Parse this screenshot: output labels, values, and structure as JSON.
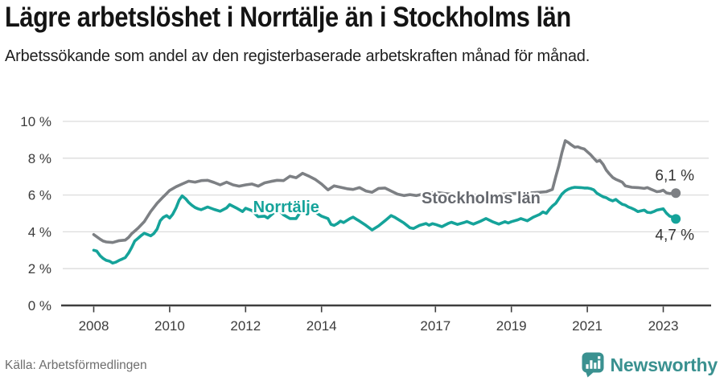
{
  "header": {
    "title": "Lägre arbetslöshet i Norrtälje än i Stockholms län",
    "subtitle": "Arbetssökande som andel av den registerbaserade arbetskraften månad för månad."
  },
  "footer": {
    "source": "Källa: Arbetsförmedlingen",
    "brand": "Newsworthy",
    "brand_icon": "newsworthy-speech-bubble-with-bar-chart",
    "brand_color": "#3a9190"
  },
  "chart_data": {
    "type": "line",
    "title": "Lägre arbetslöshet i Norrtälje än i Stockholms län",
    "xlabel": "",
    "ylabel": "",
    "unit": "%",
    "ylim": [
      0,
      10
    ],
    "grid": true,
    "gridline_color": "#dcdcdc",
    "axis_color": "#3e3e3e",
    "y_ticks": [
      {
        "label": "0 %",
        "value": 0
      },
      {
        "label": "2 %",
        "value": 2
      },
      {
        "label": "4 %",
        "value": 4
      },
      {
        "label": "6 %",
        "value": 6
      },
      {
        "label": "8 %",
        "value": 8
      },
      {
        "label": "10 %",
        "value": 10
      }
    ],
    "x_ticks": [
      2008,
      2010,
      2012,
      2014,
      2017,
      2019,
      2021,
      2023
    ],
    "series": [
      {
        "name": "Stockholms län",
        "color": "#7d8084",
        "label_color": "#66696f",
        "label_anchor": {
          "x": 2018.2,
          "y": 5.85
        },
        "end_label": "6,1 %",
        "end_value": 6.1,
        "label_side": "above",
        "points": [
          [
            2008.0,
            3.85
          ],
          [
            2008.17,
            3.6
          ],
          [
            2008.25,
            3.5
          ],
          [
            2008.33,
            3.45
          ],
          [
            2008.5,
            3.42
          ],
          [
            2008.67,
            3.52
          ],
          [
            2008.83,
            3.55
          ],
          [
            2008.92,
            3.7
          ],
          [
            2009.0,
            3.9
          ],
          [
            2009.17,
            4.2
          ],
          [
            2009.33,
            4.55
          ],
          [
            2009.5,
            5.1
          ],
          [
            2009.67,
            5.55
          ],
          [
            2009.83,
            5.9
          ],
          [
            2009.92,
            6.08
          ],
          [
            2010.0,
            6.25
          ],
          [
            2010.17,
            6.45
          ],
          [
            2010.33,
            6.6
          ],
          [
            2010.5,
            6.75
          ],
          [
            2010.67,
            6.7
          ],
          [
            2010.83,
            6.78
          ],
          [
            2011.0,
            6.8
          ],
          [
            2011.17,
            6.68
          ],
          [
            2011.33,
            6.55
          ],
          [
            2011.5,
            6.7
          ],
          [
            2011.67,
            6.55
          ],
          [
            2011.83,
            6.48
          ],
          [
            2012.0,
            6.55
          ],
          [
            2012.17,
            6.6
          ],
          [
            2012.33,
            6.48
          ],
          [
            2012.5,
            6.66
          ],
          [
            2012.67,
            6.74
          ],
          [
            2012.83,
            6.8
          ],
          [
            2013.0,
            6.78
          ],
          [
            2013.17,
            7.02
          ],
          [
            2013.33,
            6.94
          ],
          [
            2013.5,
            7.18
          ],
          [
            2013.67,
            7.02
          ],
          [
            2013.83,
            6.85
          ],
          [
            2014.0,
            6.6
          ],
          [
            2014.17,
            6.28
          ],
          [
            2014.33,
            6.5
          ],
          [
            2014.5,
            6.42
          ],
          [
            2014.67,
            6.34
          ],
          [
            2014.83,
            6.3
          ],
          [
            2015.0,
            6.4
          ],
          [
            2015.17,
            6.22
          ],
          [
            2015.33,
            6.15
          ],
          [
            2015.5,
            6.36
          ],
          [
            2015.67,
            6.38
          ],
          [
            2015.83,
            6.22
          ],
          [
            2016.0,
            6.05
          ],
          [
            2016.17,
            5.97
          ],
          [
            2016.33,
            6.02
          ],
          [
            2016.5,
            5.97
          ],
          [
            2016.67,
            6.05
          ],
          [
            2016.83,
            6.1
          ],
          [
            2017.0,
            6.15
          ],
          [
            2017.25,
            6.08
          ],
          [
            2017.5,
            6.03
          ],
          [
            2017.75,
            6.0
          ],
          [
            2018.0,
            6.0
          ],
          [
            2018.25,
            5.96
          ],
          [
            2018.5,
            6.0
          ],
          [
            2018.75,
            6.05
          ],
          [
            2019.0,
            6.08
          ],
          [
            2019.25,
            6.1
          ],
          [
            2019.5,
            6.12
          ],
          [
            2019.75,
            6.15
          ],
          [
            2019.92,
            6.18
          ],
          [
            2020.08,
            6.3
          ],
          [
            2020.17,
            7.0
          ],
          [
            2020.25,
            7.6
          ],
          [
            2020.33,
            8.3
          ],
          [
            2020.42,
            8.95
          ],
          [
            2020.5,
            8.85
          ],
          [
            2020.58,
            8.72
          ],
          [
            2020.67,
            8.6
          ],
          [
            2020.75,
            8.62
          ],
          [
            2020.83,
            8.55
          ],
          [
            2020.92,
            8.5
          ],
          [
            2021.0,
            8.35
          ],
          [
            2021.08,
            8.2
          ],
          [
            2021.17,
            8.0
          ],
          [
            2021.25,
            7.82
          ],
          [
            2021.33,
            7.88
          ],
          [
            2021.42,
            7.65
          ],
          [
            2021.5,
            7.35
          ],
          [
            2021.58,
            7.15
          ],
          [
            2021.67,
            6.95
          ],
          [
            2021.75,
            6.85
          ],
          [
            2021.83,
            6.78
          ],
          [
            2021.92,
            6.7
          ],
          [
            2022.0,
            6.5
          ],
          [
            2022.17,
            6.42
          ],
          [
            2022.33,
            6.4
          ],
          [
            2022.5,
            6.36
          ],
          [
            2022.58,
            6.4
          ],
          [
            2022.67,
            6.32
          ],
          [
            2022.75,
            6.25
          ],
          [
            2022.83,
            6.18
          ],
          [
            2022.92,
            6.2
          ],
          [
            2023.0,
            6.26
          ],
          [
            2023.08,
            6.12
          ],
          [
            2023.17,
            6.08
          ],
          [
            2023.25,
            6.1
          ],
          [
            2023.33,
            6.1
          ]
        ]
      },
      {
        "name": "Norrtälje",
        "color": "#15a39a",
        "label_color": "#15a39a",
        "label_anchor": {
          "x": 2013.07,
          "y": 5.37
        },
        "end_label": "4,7 %",
        "end_value": 4.7,
        "label_side": "below",
        "points": [
          [
            2008.0,
            3.0
          ],
          [
            2008.08,
            2.95
          ],
          [
            2008.17,
            2.7
          ],
          [
            2008.25,
            2.55
          ],
          [
            2008.33,
            2.45
          ],
          [
            2008.42,
            2.4
          ],
          [
            2008.5,
            2.3
          ],
          [
            2008.58,
            2.35
          ],
          [
            2008.67,
            2.45
          ],
          [
            2008.75,
            2.52
          ],
          [
            2008.83,
            2.6
          ],
          [
            2008.92,
            2.85
          ],
          [
            2009.0,
            3.15
          ],
          [
            2009.08,
            3.5
          ],
          [
            2009.17,
            3.65
          ],
          [
            2009.25,
            3.8
          ],
          [
            2009.33,
            3.92
          ],
          [
            2009.42,
            3.85
          ],
          [
            2009.5,
            3.78
          ],
          [
            2009.58,
            3.9
          ],
          [
            2009.67,
            4.15
          ],
          [
            2009.75,
            4.6
          ],
          [
            2009.83,
            4.78
          ],
          [
            2009.92,
            4.88
          ],
          [
            2010.0,
            4.75
          ],
          [
            2010.08,
            4.95
          ],
          [
            2010.17,
            5.3
          ],
          [
            2010.25,
            5.72
          ],
          [
            2010.33,
            5.95
          ],
          [
            2010.42,
            5.8
          ],
          [
            2010.5,
            5.6
          ],
          [
            2010.58,
            5.45
          ],
          [
            2010.67,
            5.32
          ],
          [
            2010.75,
            5.25
          ],
          [
            2010.83,
            5.2
          ],
          [
            2010.92,
            5.28
          ],
          [
            2011.0,
            5.35
          ],
          [
            2011.17,
            5.22
          ],
          [
            2011.33,
            5.12
          ],
          [
            2011.5,
            5.3
          ],
          [
            2011.58,
            5.48
          ],
          [
            2011.75,
            5.3
          ],
          [
            2011.92,
            5.1
          ],
          [
            2012.0,
            5.28
          ],
          [
            2012.17,
            5.15
          ],
          [
            2012.33,
            4.82
          ],
          [
            2012.5,
            4.85
          ],
          [
            2012.58,
            4.75
          ],
          [
            2012.75,
            5.05
          ],
          [
            2012.83,
            5.18
          ],
          [
            2012.92,
            5.08
          ],
          [
            2013.0,
            4.92
          ],
          [
            2013.17,
            4.72
          ],
          [
            2013.33,
            4.72
          ],
          [
            2013.42,
            5.0
          ],
          [
            2013.5,
            5.3
          ],
          [
            2013.58,
            5.42
          ],
          [
            2013.75,
            5.2
          ],
          [
            2013.92,
            4.95
          ],
          [
            2014.0,
            4.85
          ],
          [
            2014.17,
            4.72
          ],
          [
            2014.25,
            4.4
          ],
          [
            2014.33,
            4.35
          ],
          [
            2014.42,
            4.45
          ],
          [
            2014.5,
            4.58
          ],
          [
            2014.58,
            4.5
          ],
          [
            2014.75,
            4.72
          ],
          [
            2014.83,
            4.8
          ],
          [
            2014.92,
            4.68
          ],
          [
            2015.0,
            4.58
          ],
          [
            2015.17,
            4.35
          ],
          [
            2015.33,
            4.1
          ],
          [
            2015.5,
            4.32
          ],
          [
            2015.67,
            4.6
          ],
          [
            2015.83,
            4.88
          ],
          [
            2015.92,
            4.8
          ],
          [
            2016.0,
            4.7
          ],
          [
            2016.17,
            4.48
          ],
          [
            2016.33,
            4.22
          ],
          [
            2016.42,
            4.18
          ],
          [
            2016.58,
            4.35
          ],
          [
            2016.75,
            4.45
          ],
          [
            2016.83,
            4.36
          ],
          [
            2016.92,
            4.44
          ],
          [
            2017.0,
            4.4
          ],
          [
            2017.17,
            4.28
          ],
          [
            2017.33,
            4.45
          ],
          [
            2017.42,
            4.52
          ],
          [
            2017.58,
            4.4
          ],
          [
            2017.75,
            4.5
          ],
          [
            2017.83,
            4.56
          ],
          [
            2017.92,
            4.48
          ],
          [
            2018.0,
            4.42
          ],
          [
            2018.17,
            4.56
          ],
          [
            2018.33,
            4.72
          ],
          [
            2018.5,
            4.55
          ],
          [
            2018.67,
            4.42
          ],
          [
            2018.83,
            4.55
          ],
          [
            2018.92,
            4.48
          ],
          [
            2019.0,
            4.55
          ],
          [
            2019.17,
            4.65
          ],
          [
            2019.25,
            4.72
          ],
          [
            2019.42,
            4.6
          ],
          [
            2019.58,
            4.8
          ],
          [
            2019.75,
            4.95
          ],
          [
            2019.83,
            5.08
          ],
          [
            2019.92,
            5.0
          ],
          [
            2020.0,
            5.22
          ],
          [
            2020.08,
            5.4
          ],
          [
            2020.17,
            5.55
          ],
          [
            2020.25,
            5.8
          ],
          [
            2020.33,
            6.05
          ],
          [
            2020.42,
            6.22
          ],
          [
            2020.5,
            6.32
          ],
          [
            2020.58,
            6.38
          ],
          [
            2020.67,
            6.42
          ],
          [
            2020.83,
            6.4
          ],
          [
            2020.92,
            6.38
          ],
          [
            2021.0,
            6.38
          ],
          [
            2021.08,
            6.35
          ],
          [
            2021.17,
            6.28
          ],
          [
            2021.25,
            6.1
          ],
          [
            2021.33,
            6.0
          ],
          [
            2021.42,
            5.9
          ],
          [
            2021.5,
            5.85
          ],
          [
            2021.58,
            5.75
          ],
          [
            2021.67,
            5.68
          ],
          [
            2021.75,
            5.76
          ],
          [
            2021.83,
            5.62
          ],
          [
            2021.92,
            5.5
          ],
          [
            2022.0,
            5.45
          ],
          [
            2022.08,
            5.35
          ],
          [
            2022.17,
            5.28
          ],
          [
            2022.25,
            5.2
          ],
          [
            2022.33,
            5.1
          ],
          [
            2022.42,
            5.14
          ],
          [
            2022.5,
            5.18
          ],
          [
            2022.58,
            5.06
          ],
          [
            2022.67,
            5.04
          ],
          [
            2022.75,
            5.1
          ],
          [
            2022.83,
            5.18
          ],
          [
            2022.92,
            5.22
          ],
          [
            2023.0,
            5.25
          ],
          [
            2023.08,
            5.02
          ],
          [
            2023.17,
            4.85
          ],
          [
            2023.25,
            4.8
          ],
          [
            2023.33,
            4.7
          ]
        ]
      }
    ]
  }
}
